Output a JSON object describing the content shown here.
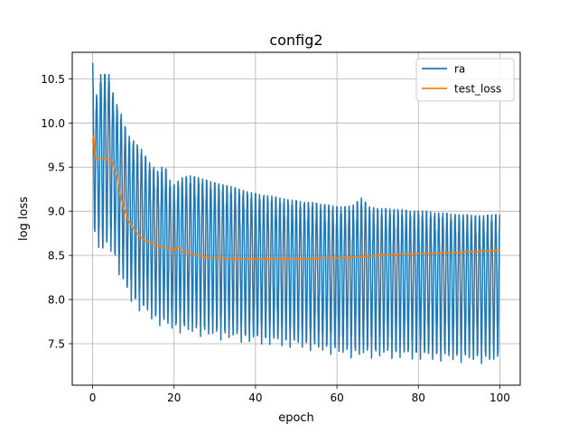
{
  "chart_data": {
    "type": "line",
    "title": "config2",
    "xlabel": "epoch",
    "ylabel": "log loss",
    "xlim": [
      -5,
      105
    ],
    "ylim": [
      7.03,
      10.8
    ],
    "xticks": [
      0,
      20,
      40,
      60,
      80,
      100
    ],
    "yticks": [
      7.5,
      8.0,
      8.5,
      9.0,
      9.5,
      10.0,
      10.5
    ],
    "xtick_labels": [
      "0",
      "20",
      "40",
      "60",
      "80",
      "100"
    ],
    "ytick_labels": [
      "7.5",
      "8.0",
      "8.5",
      "9.0",
      "9.5",
      "10.0",
      "10.5"
    ],
    "grid": true,
    "legend_position": "upper right",
    "series": [
      {
        "name": "ra",
        "color": "#1f77b4",
        "oscillation_period_epochs": 1.0,
        "upper_envelope": [
          [
            0,
            10.68
          ],
          [
            1,
            10.3
          ],
          [
            2,
            10.55
          ],
          [
            3,
            10.55
          ],
          [
            4,
            10.55
          ],
          [
            5,
            10.35
          ],
          [
            6,
            10.2
          ],
          [
            7,
            10.1
          ],
          [
            8,
            9.95
          ],
          [
            9,
            9.85
          ],
          [
            10,
            9.8
          ],
          [
            11,
            9.75
          ],
          [
            12,
            9.7
          ],
          [
            13,
            9.62
          ],
          [
            14,
            9.55
          ],
          [
            15,
            9.5
          ],
          [
            16,
            9.45
          ],
          [
            17,
            9.5
          ],
          [
            18,
            9.48
          ],
          [
            19,
            9.35
          ],
          [
            20,
            9.3
          ],
          [
            22,
            9.38
          ],
          [
            24,
            9.4
          ],
          [
            26,
            9.38
          ],
          [
            28,
            9.35
          ],
          [
            30,
            9.32
          ],
          [
            32,
            9.3
          ],
          [
            34,
            9.28
          ],
          [
            36,
            9.25
          ],
          [
            38,
            9.22
          ],
          [
            40,
            9.2
          ],
          [
            42,
            9.18
          ],
          [
            44,
            9.17
          ],
          [
            46,
            9.15
          ],
          [
            48,
            9.13
          ],
          [
            50,
            9.12
          ],
          [
            52,
            9.1
          ],
          [
            54,
            9.1
          ],
          [
            56,
            9.08
          ],
          [
            58,
            9.07
          ],
          [
            60,
            9.05
          ],
          [
            62,
            9.05
          ],
          [
            64,
            9.07
          ],
          [
            66,
            9.15
          ],
          [
            68,
            9.05
          ],
          [
            70,
            9.03
          ],
          [
            72,
            9.03
          ],
          [
            74,
            9.02
          ],
          [
            76,
            9.02
          ],
          [
            78,
            9.0
          ],
          [
            80,
            9.0
          ],
          [
            82,
            9.0
          ],
          [
            84,
            8.98
          ],
          [
            86,
            8.98
          ],
          [
            88,
            8.97
          ],
          [
            90,
            8.96
          ],
          [
            92,
            8.96
          ],
          [
            94,
            8.95
          ],
          [
            96,
            8.95
          ],
          [
            98,
            8.96
          ],
          [
            100,
            8.96
          ]
        ],
        "lower_envelope": [
          [
            0,
            8.7
          ],
          [
            1,
            8.6
          ],
          [
            2,
            8.45
          ],
          [
            3,
            8.45
          ],
          [
            4,
            8.55
          ],
          [
            5,
            8.45
          ],
          [
            6,
            8.3
          ],
          [
            7,
            8.15
          ],
          [
            8,
            8.05
          ],
          [
            9,
            7.95
          ],
          [
            10,
            7.9
          ],
          [
            11,
            7.85
          ],
          [
            12,
            7.8
          ],
          [
            13,
            7.78
          ],
          [
            14,
            7.74
          ],
          [
            15,
            7.7
          ],
          [
            16,
            7.68
          ],
          [
            17,
            7.65
          ],
          [
            18,
            7.63
          ],
          [
            19,
            7.62
          ],
          [
            20,
            7.6
          ],
          [
            22,
            7.58
          ],
          [
            24,
            7.56
          ],
          [
            26,
            7.55
          ],
          [
            28,
            7.53
          ],
          [
            30,
            7.52
          ],
          [
            32,
            7.5
          ],
          [
            34,
            7.5
          ],
          [
            36,
            7.48
          ],
          [
            38,
            7.47
          ],
          [
            40,
            7.46
          ],
          [
            42,
            7.45
          ],
          [
            44,
            7.44
          ],
          [
            46,
            7.43
          ],
          [
            48,
            7.42
          ],
          [
            50,
            7.41
          ],
          [
            52,
            7.4
          ],
          [
            54,
            7.38
          ],
          [
            56,
            7.36
          ],
          [
            58,
            7.35
          ],
          [
            60,
            7.33
          ],
          [
            62,
            7.32
          ],
          [
            64,
            7.3
          ],
          [
            66,
            7.3
          ],
          [
            68,
            7.3
          ],
          [
            70,
            7.3
          ],
          [
            72,
            7.3
          ],
          [
            74,
            7.29
          ],
          [
            76,
            7.29
          ],
          [
            78,
            7.28
          ],
          [
            80,
            7.28
          ],
          [
            82,
            7.27
          ],
          [
            84,
            7.27
          ],
          [
            86,
            7.26
          ],
          [
            88,
            7.26
          ],
          [
            90,
            7.25
          ],
          [
            92,
            7.25
          ],
          [
            94,
            7.25
          ],
          [
            96,
            7.24
          ],
          [
            98,
            7.24
          ],
          [
            100,
            7.24
          ]
        ]
      },
      {
        "name": "test_loss",
        "color": "#ff7f0e",
        "points": [
          [
            0,
            9.78
          ],
          [
            0.3,
            9.85
          ],
          [
            0.6,
            9.62
          ],
          [
            1,
            9.6
          ],
          [
            2,
            9.58
          ],
          [
            3,
            9.6
          ],
          [
            4,
            9.58
          ],
          [
            5,
            9.55
          ],
          [
            5.5,
            9.45
          ],
          [
            6,
            9.4
          ],
          [
            6.5,
            9.25
          ],
          [
            7,
            9.15
          ],
          [
            7.5,
            9.05
          ],
          [
            8,
            9.0
          ],
          [
            8.5,
            8.92
          ],
          [
            9,
            8.88
          ],
          [
            9.5,
            8.85
          ],
          [
            10,
            8.8
          ],
          [
            11,
            8.75
          ],
          [
            12,
            8.7
          ],
          [
            13,
            8.67
          ],
          [
            14,
            8.65
          ],
          [
            15,
            8.63
          ],
          [
            16,
            8.61
          ],
          [
            17,
            8.6
          ],
          [
            18,
            8.58
          ],
          [
            19,
            8.57
          ],
          [
            20,
            8.56
          ],
          [
            21,
            8.6
          ],
          [
            22,
            8.54
          ],
          [
            24,
            8.52
          ],
          [
            26,
            8.5
          ],
          [
            28,
            8.48
          ],
          [
            30,
            8.47
          ],
          [
            32,
            8.47
          ],
          [
            34,
            8.46
          ],
          [
            36,
            8.46
          ],
          [
            38,
            8.46
          ],
          [
            40,
            8.46
          ],
          [
            42,
            8.46
          ],
          [
            44,
            8.46
          ],
          [
            46,
            8.46
          ],
          [
            48,
            8.46
          ],
          [
            50,
            8.46
          ],
          [
            52,
            8.46
          ],
          [
            54,
            8.46
          ],
          [
            56,
            8.47
          ],
          [
            58,
            8.47
          ],
          [
            60,
            8.47
          ],
          [
            62,
            8.48
          ],
          [
            64,
            8.48
          ],
          [
            66,
            8.49
          ],
          [
            68,
            8.49
          ],
          [
            70,
            8.5
          ],
          [
            72,
            8.5
          ],
          [
            74,
            8.51
          ],
          [
            76,
            8.51
          ],
          [
            78,
            8.51
          ],
          [
            80,
            8.52
          ],
          [
            82,
            8.52
          ],
          [
            84,
            8.52
          ],
          [
            86,
            8.53
          ],
          [
            88,
            8.53
          ],
          [
            90,
            8.53
          ],
          [
            92,
            8.54
          ],
          [
            94,
            8.54
          ],
          [
            96,
            8.55
          ],
          [
            98,
            8.55
          ],
          [
            100,
            8.56
          ]
        ]
      }
    ]
  }
}
